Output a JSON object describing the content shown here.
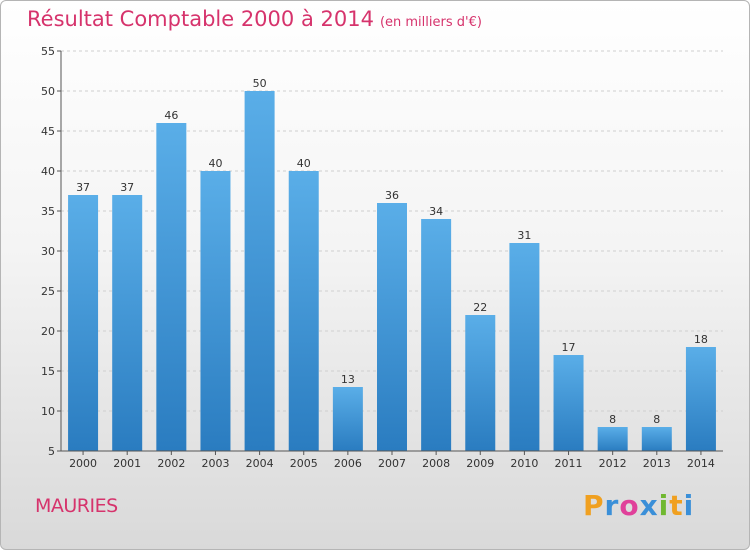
{
  "header": {
    "title": "Résultat Comptable 2000 à 2014",
    "subtitle": "(en milliers d'€)"
  },
  "commune": "MAURIES",
  "logo": {
    "letters": [
      "P",
      "r",
      "o",
      "x",
      "i",
      "t",
      "i"
    ],
    "colors": [
      "#f0a020",
      "#3a8fd8",
      "#e0409a",
      "#3a8fd8",
      "#70b830",
      "#f0a020",
      "#3a8fd8"
    ]
  },
  "colors": {
    "bar_top": "#5aaee8",
    "bar_bottom": "#2a7cc0",
    "title": "#d6336c"
  },
  "chart_data": {
    "type": "bar",
    "title": "Résultat Comptable 2000 à 2014",
    "subtitle": "(en milliers d'€)",
    "categories": [
      "2000",
      "2001",
      "2002",
      "2003",
      "2004",
      "2005",
      "2006",
      "2007",
      "2008",
      "2009",
      "2010",
      "2011",
      "2012",
      "2013",
      "2014"
    ],
    "values": [
      37,
      37,
      46,
      40,
      50,
      40,
      13,
      36,
      34,
      22,
      31,
      17,
      8,
      8,
      18
    ],
    "value_labels": [
      "37",
      "37",
      "46",
      "40",
      "50",
      "40",
      "13",
      "36",
      "34",
      "22",
      "31",
      "17",
      "8",
      "8",
      "18"
    ],
    "ylim": [
      5,
      55
    ],
    "yticks": [
      5,
      10,
      15,
      20,
      25,
      30,
      35,
      40,
      45,
      50,
      55
    ],
    "ytick_labels": [
      "5",
      "10",
      "15",
      "20",
      "25",
      "30",
      "35",
      "40",
      "45",
      "50",
      "55"
    ],
    "grid": true,
    "xlabel": "",
    "ylabel": ""
  }
}
